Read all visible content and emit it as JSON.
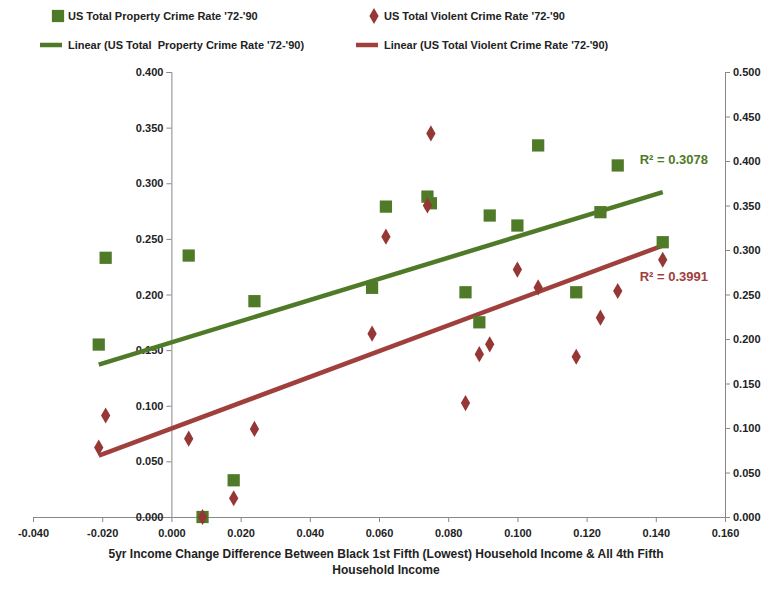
{
  "chart_data": {
    "type": "scatter",
    "xlabel": "5yr Income Change Difference Between Black 1st Fifth (Lowest) Household Income & All 4th Fifth Household Income",
    "xlim": [
      -0.04,
      0.16
    ],
    "xticks": [
      {
        "value": -0.04,
        "label": "-0.040"
      },
      {
        "value": -0.02,
        "label": "-0.020"
      },
      {
        "value": 0,
        "label": "0.000"
      },
      {
        "value": 0.02,
        "label": "0.020"
      },
      {
        "value": 0.04,
        "label": "0.040"
      },
      {
        "value": 0.06,
        "label": "0.060"
      },
      {
        "value": 0.08,
        "label": "0.080"
      },
      {
        "value": 0.1,
        "label": "0.100"
      },
      {
        "value": 0.12,
        "label": "0.120"
      },
      {
        "value": 0.14,
        "label": "0.140"
      },
      {
        "value": 0.16,
        "label": "0.160"
      }
    ],
    "ylim": [
      0,
      0.4
    ],
    "yticks": [
      {
        "value": 0,
        "label": "0.000"
      },
      {
        "value": 0.05,
        "label": "0.050"
      },
      {
        "value": 0.1,
        "label": "0.100"
      },
      {
        "value": 0.15,
        "label": "0.150"
      },
      {
        "value": 0.2,
        "label": "0.200"
      },
      {
        "value": 0.25,
        "label": "0.250"
      },
      {
        "value": 0.3,
        "label": "0.300"
      },
      {
        "value": 0.35,
        "label": "0.350"
      },
      {
        "value": 0.4,
        "label": "0.400"
      }
    ],
    "y2lim": [
      0,
      0.5
    ],
    "y2ticks": [
      {
        "value": 0,
        "label": "0.000"
      },
      {
        "value": 0.05,
        "label": "0.050"
      },
      {
        "value": 0.1,
        "label": "0.100"
      },
      {
        "value": 0.15,
        "label": "0.150"
      },
      {
        "value": 0.2,
        "label": "0.200"
      },
      {
        "value": 0.25,
        "label": "0.250"
      },
      {
        "value": 0.3,
        "label": "0.300"
      },
      {
        "value": 0.35,
        "label": "0.350"
      },
      {
        "value": 0.4,
        "label": "0.400"
      },
      {
        "value": 0.45,
        "label": "0.450"
      },
      {
        "value": 0.5,
        "label": "0.500"
      }
    ],
    "grid": false,
    "legend": "top",
    "series": [
      {
        "name": "US Total Property Crime Rate '72-'90",
        "type": "scatter",
        "marker": "square",
        "color": "#4f7a28",
        "x": [
          -0.021,
          -0.019,
          0.005,
          0.009,
          0.018,
          0.024,
          0.058,
          0.062,
          0.074,
          0.075,
          0.085,
          0.089,
          0.092,
          0.1,
          0.106,
          0.117,
          0.124,
          0.129,
          0.142
        ],
        "values": [
          0.155,
          0.233,
          0.235,
          0.0,
          0.033,
          0.194,
          0.206,
          0.279,
          0.288,
          0.282,
          0.202,
          0.175,
          0.271,
          0.262,
          0.334,
          0.202,
          0.274,
          0.316,
          0.247
        ]
      },
      {
        "name": "US Total Violent Crime Rate '72-'90",
        "type": "scatter",
        "marker": "diamond",
        "color": "#953735",
        "axis": "y2",
        "x": [
          -0.021,
          -0.019,
          0.005,
          0.009,
          0.018,
          0.024,
          0.058,
          0.062,
          0.074,
          0.075,
          0.085,
          0.089,
          0.092,
          0.1,
          0.106,
          0.117,
          0.124,
          0.129,
          0.142
        ],
        "values": [
          0.078,
          0.114,
          0.088,
          0.0,
          0.021,
          0.099,
          0.206,
          0.315,
          0.35,
          0.431,
          0.128,
          0.183,
          0.194,
          0.278,
          0.258,
          0.18,
          0.224,
          0.254,
          0.289
        ]
      },
      {
        "name": "Linear (US Total  Property Crime Rate '72-'90)",
        "type": "line",
        "line_style": "solid",
        "color": "#4f7a28",
        "x": [
          -0.021,
          0.142
        ],
        "values": [
          0.137,
          0.292
        ]
      },
      {
        "name": "Linear (US Total Violent Crime Rate '72-'90)",
        "type": "line",
        "line_style": "solid",
        "color": "#a0403c",
        "axis": "y2",
        "x": [
          -0.021,
          0.142
        ],
        "values": [
          0.069,
          0.305
        ]
      }
    ],
    "annotations": [
      "R² = 0.3078",
      "R² = 0.3991"
    ]
  }
}
